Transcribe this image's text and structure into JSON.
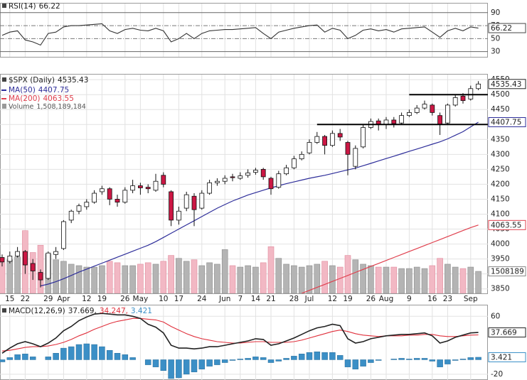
{
  "chart_data": {
    "type": "candlestick",
    "categories": [
      null,
      "15",
      null,
      "22",
      null,
      null,
      "29",
      null,
      "Apr",
      null,
      null,
      "12",
      null,
      "19",
      null,
      null,
      "26",
      null,
      "May",
      null,
      null,
      "10",
      null,
      "17",
      null,
      null,
      "24",
      null,
      null,
      "Jun",
      null,
      "7",
      null,
      "14",
      null,
      "21",
      null,
      null,
      "28",
      null,
      "Jul",
      null,
      null,
      "12",
      null,
      "19",
      null,
      null,
      "26",
      null,
      "Aug",
      null,
      null,
      "9",
      null,
      null,
      "16",
      null,
      "23",
      null,
      null,
      "Sep",
      null
    ],
    "price": {
      "name": "$SPX (Daily)",
      "up_color": "#ffffff",
      "down_color": "#cc1744",
      "ylim": [
        3835,
        4567
      ],
      "yticks": [
        3850,
        3900,
        3950,
        4000,
        4050,
        4100,
        4150,
        4200,
        4250,
        4300,
        4350,
        4400,
        4450,
        4500,
        4550
      ],
      "grid": true,
      "candles": [
        [
          3955,
          3965,
          3925,
          3940
        ],
        [
          3942,
          3975,
          3935,
          3960
        ],
        [
          3960,
          3990,
          3955,
          3975
        ],
        [
          3975,
          3980,
          3900,
          3930
        ],
        [
          3935,
          3950,
          3880,
          3910
        ],
        [
          3905,
          3915,
          3855,
          3880
        ],
        [
          3885,
          3975,
          3880,
          3970
        ],
        [
          3965,
          3990,
          3950,
          3975
        ],
        [
          3985,
          4080,
          3980,
          4075
        ],
        [
          4080,
          4115,
          4070,
          4110
        ],
        [
          4110,
          4135,
          4100,
          4128
        ],
        [
          4125,
          4150,
          4115,
          4140
        ],
        [
          4140,
          4180,
          4135,
          4170
        ],
        [
          4175,
          4195,
          4165,
          4185
        ],
        [
          4185,
          4190,
          4130,
          4150
        ],
        [
          4150,
          4165,
          4125,
          4140
        ],
        [
          4140,
          4190,
          4135,
          4180
        ],
        [
          4180,
          4215,
          4170,
          4195
        ],
        [
          4195,
          4205,
          4165,
          4188
        ],
        [
          4190,
          4200,
          4170,
          4185
        ],
        [
          4180,
          4235,
          4175,
          4210
        ],
        [
          4230,
          4240,
          4190,
          4200
        ],
        [
          4175,
          4180,
          4060,
          4080
        ],
        [
          4080,
          4125,
          4065,
          4110
        ],
        [
          4120,
          4175,
          4110,
          4165
        ],
        [
          4160,
          4170,
          4060,
          4115
        ],
        [
          4120,
          4180,
          4115,
          4170
        ],
        [
          4170,
          4215,
          4165,
          4205
        ],
        [
          4205,
          4220,
          4195,
          4210
        ],
        [
          4210,
          4230,
          4200,
          4220
        ],
        [
          4225,
          4235,
          4210,
          4222
        ],
        [
          4220,
          4240,
          4215,
          4228
        ],
        [
          4230,
          4250,
          4222,
          4238
        ],
        [
          4240,
          4255,
          4232,
          4247
        ],
        [
          4250,
          4255,
          4215,
          4225
        ],
        [
          4220,
          4225,
          4165,
          4185
        ],
        [
          4190,
          4245,
          4185,
          4235
        ],
        [
          4235,
          4265,
          4230,
          4255
        ],
        [
          4255,
          4295,
          4250,
          4285
        ],
        [
          4285,
          4310,
          4280,
          4300
        ],
        [
          4305,
          4350,
          4300,
          4340
        ],
        [
          4340,
          4375,
          4335,
          4360
        ],
        [
          4360,
          4365,
          4300,
          4330
        ],
        [
          4330,
          4380,
          4325,
          4370
        ],
        [
          4370,
          4385,
          4345,
          4358
        ],
        [
          4340,
          4345,
          4230,
          4300
        ],
        [
          4260,
          4330,
          4250,
          4320
        ],
        [
          4325,
          4400,
          4320,
          4390
        ],
        [
          4390,
          4420,
          4385,
          4410
        ],
        [
          4412,
          4420,
          4380,
          4400
        ],
        [
          4400,
          4425,
          4385,
          4415
        ],
        [
          4415,
          4425,
          4390,
          4403
        ],
        [
          4405,
          4440,
          4400,
          4430
        ],
        [
          4430,
          4450,
          4425,
          4440
        ],
        [
          4440,
          4465,
          4435,
          4455
        ],
        [
          4455,
          4480,
          4450,
          4468
        ],
        [
          4465,
          4470,
          4430,
          4440
        ],
        [
          4430,
          4440,
          4365,
          4400
        ],
        [
          4405,
          4470,
          4400,
          4465
        ],
        [
          4465,
          4500,
          4460,
          4490
        ],
        [
          4495,
          4505,
          4470,
          4480
        ],
        [
          4485,
          4530,
          4480,
          4520
        ],
        [
          4520,
          4545,
          4515,
          4535.43
        ]
      ]
    },
    "ma50": {
      "name": "MA(50)",
      "color": "#2e2e9a",
      "values": [
        null,
        null,
        null,
        null,
        null,
        3860,
        3866,
        3874,
        3884,
        3895,
        3906,
        3916,
        3926,
        3936,
        3946,
        3956,
        3966,
        3976,
        3986,
        3996,
        4008,
        4022,
        4036,
        4050,
        4064,
        4078,
        4092,
        4106,
        4120,
        4132,
        4144,
        4154,
        4164,
        4172,
        4180,
        4188,
        4195,
        4202,
        4208,
        4214,
        4220,
        4225,
        4230,
        4236,
        4242,
        4248,
        4254,
        4262,
        4270,
        4278,
        4286,
        4294,
        4302,
        4310,
        4318,
        4326,
        4334,
        4342,
        4352,
        4364,
        4376,
        4392,
        4407.75
      ]
    },
    "ma200": {
      "name": "MA(200)",
      "color": "#e0404e",
      "values": [
        null,
        null,
        null,
        null,
        null,
        null,
        null,
        null,
        null,
        null,
        null,
        null,
        null,
        null,
        null,
        null,
        null,
        null,
        null,
        null,
        null,
        null,
        null,
        null,
        null,
        null,
        null,
        null,
        null,
        null,
        null,
        null,
        null,
        null,
        null,
        null,
        null,
        null,
        null,
        3835,
        3845,
        3855,
        3865,
        3875,
        3885,
        3895,
        3905,
        3915,
        3925,
        3935,
        3945,
        3955,
        3965,
        3975,
        3985,
        3995,
        4005,
        4015,
        4025,
        4035,
        4045,
        4055,
        4063.55
      ]
    },
    "volume": {
      "name": "Volume",
      "label": "1,508,189,184",
      "color": "#b4b4b4",
      "down_color": "#f2b8c4",
      "ylim": [
        0,
        15000000
      ],
      "values": [
        2100000,
        2300000,
        2500000,
        4300000,
        2800000,
        3300000,
        2700000,
        2300000,
        2200000,
        2000000,
        1900000,
        1800000,
        1800000,
        1900000,
        2200000,
        2100000,
        1900000,
        1900000,
        2000000,
        2100000,
        2000000,
        2200000,
        2600000,
        2400000,
        2200000,
        2300000,
        1900000,
        2100000,
        2000000,
        3000000,
        1900000,
        1800000,
        1900000,
        1800000,
        2100000,
        3200000,
        2400000,
        2000000,
        1900000,
        1800000,
        1900000,
        2000000,
        2200000,
        1900000,
        1800000,
        2600000,
        2300000,
        2000000,
        1900000,
        1800000,
        1800000,
        1800000,
        1700000,
        1700000,
        1800000,
        1700000,
        1900000,
        2400000,
        2000000,
        1800000,
        1700000,
        1800000,
        1508189
      ]
    },
    "hlines": [
      {
        "value": 4400,
        "from": 41
      },
      {
        "value": 4500,
        "from": 53
      }
    ],
    "rsi": {
      "name": "RSI(14)",
      "color": "#333333",
      "ylim": [
        22,
        104
      ],
      "yticks": [
        90,
        70,
        50,
        30
      ],
      "values": [
        55,
        60,
        62,
        48,
        45,
        40,
        58,
        60,
        68,
        70,
        70,
        71,
        72,
        73,
        62,
        58,
        64,
        66,
        63,
        62,
        66,
        62,
        45,
        50,
        58,
        50,
        58,
        62,
        63,
        64,
        64,
        65,
        66,
        67,
        58,
        50,
        60,
        63,
        66,
        68,
        70,
        71,
        60,
        66,
        63,
        50,
        55,
        63,
        65,
        62,
        64,
        60,
        65,
        66,
        67,
        68,
        60,
        52,
        62,
        66,
        62,
        68,
        66.22
      ]
    },
    "macd": {
      "title": "MACD(12,26,9)",
      "ylim": [
        -28,
        75
      ],
      "yticks": [
        60,
        -20
      ],
      "series": [
        {
          "label": "37.669,",
          "color": "#222222",
          "values": [
            9,
            16,
            22,
            25,
            22,
            18,
            23,
            30,
            40,
            46,
            54,
            59,
            63,
            64,
            63,
            62,
            62,
            60,
            57,
            49,
            45,
            37,
            20,
            16,
            16,
            15,
            16,
            18,
            18,
            20,
            22,
            24,
            26,
            29,
            28,
            20,
            22,
            26,
            30,
            35,
            40,
            44,
            46,
            49,
            47,
            29,
            23,
            25,
            29,
            31,
            33,
            34,
            35,
            35,
            36,
            37,
            33,
            23,
            26,
            31,
            34,
            37,
            37.669
          ]
        },
        {
          "label": "34.247,",
          "color": "#e0303c",
          "values": [
            12,
            13,
            15,
            17,
            18,
            18,
            19,
            21,
            24,
            28,
            33,
            37,
            42,
            46,
            50,
            53,
            55,
            57,
            57,
            56,
            55,
            52,
            46,
            41,
            36,
            32,
            29,
            27,
            25,
            24,
            23,
            23,
            24,
            25,
            25,
            24,
            24,
            24,
            25,
            27,
            30,
            33,
            36,
            39,
            41,
            39,
            36,
            34,
            33,
            32,
            33,
            33,
            33,
            34,
            34,
            35,
            35,
            33,
            32,
            32,
            33,
            34,
            34.247
          ]
        },
        {
          "label": "3.421",
          "color": "#3b8fc6",
          "values": [
            -3,
            3,
            7,
            8,
            4,
            0,
            4,
            9,
            16,
            18,
            21,
            22,
            21,
            18,
            13,
            9,
            7,
            3,
            0,
            -7,
            -10,
            -15,
            -26,
            -25,
            -20,
            -17,
            -13,
            -9,
            -7,
            -4,
            -1,
            1,
            2,
            4,
            3,
            -4,
            -2,
            2,
            5,
            8,
            10,
            11,
            10,
            10,
            6,
            -10,
            -13,
            -9,
            -4,
            -1,
            0,
            1,
            2,
            1,
            2,
            2,
            -2,
            -10,
            -6,
            -1,
            1,
            3,
            3.421
          ]
        }
      ]
    }
  }
}
